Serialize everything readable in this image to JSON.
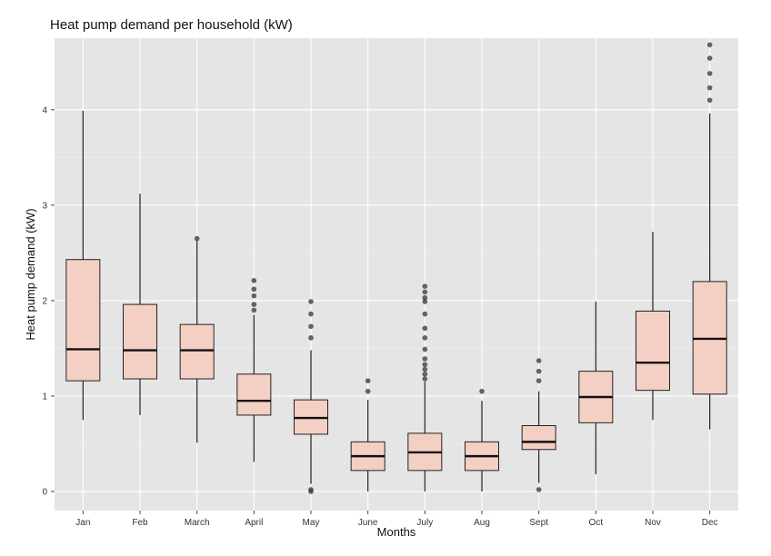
{
  "chart_data": {
    "type": "boxplot",
    "title": "Heat pump demand per household (kW)",
    "xlabel": "Months",
    "ylabel": "Heat pump demand (kW)",
    "ylim": [
      -0.2,
      4.75
    ],
    "yticks": [
      0,
      1,
      2,
      3,
      4
    ],
    "grid": true,
    "colors": {
      "panel": "#e5e5e5",
      "grid_major": "#ffffff",
      "box_fill": "#f4cfc4",
      "box_line": "#222222",
      "median_line": "#111111",
      "outlier": "#333333"
    },
    "categories": [
      "Jan",
      "Feb",
      "March",
      "April",
      "May",
      "June",
      "July",
      "Aug",
      "Sept",
      "Oct",
      "Nov",
      "Dec"
    ],
    "boxes": [
      {
        "category": "Jan",
        "lower_whisker": 0.75,
        "q1": 1.16,
        "median": 1.49,
        "q3": 2.43,
        "upper_whisker": 3.99,
        "outliers": []
      },
      {
        "category": "Feb",
        "lower_whisker": 0.8,
        "q1": 1.18,
        "median": 1.48,
        "q3": 1.96,
        "upper_whisker": 3.12,
        "outliers": []
      },
      {
        "category": "March",
        "lower_whisker": 0.51,
        "q1": 1.18,
        "median": 1.48,
        "q3": 1.75,
        "upper_whisker": 2.63,
        "outliers": [
          2.65
        ]
      },
      {
        "category": "April",
        "lower_whisker": 0.31,
        "q1": 0.8,
        "median": 0.95,
        "q3": 1.23,
        "upper_whisker": 1.85,
        "outliers": [
          1.9,
          1.96,
          2.05,
          2.12,
          2.21
        ]
      },
      {
        "category": "May",
        "lower_whisker": 0.08,
        "q1": 0.6,
        "median": 0.77,
        "q3": 0.96,
        "upper_whisker": 1.48,
        "outliers": [
          0.0,
          0.02,
          1.61,
          1.73,
          1.86,
          1.99
        ]
      },
      {
        "category": "June",
        "lower_whisker": 0.0,
        "q1": 0.22,
        "median": 0.37,
        "q3": 0.52,
        "upper_whisker": 0.96,
        "outliers": [
          1.05,
          1.16
        ]
      },
      {
        "category": "July",
        "lower_whisker": 0.0,
        "q1": 0.22,
        "median": 0.41,
        "q3": 0.61,
        "upper_whisker": 1.15,
        "outliers": [
          1.18,
          1.23,
          1.28,
          1.33,
          1.39,
          1.49,
          1.61,
          1.71,
          1.86,
          1.99,
          2.03,
          2.09,
          2.15
        ]
      },
      {
        "category": "Aug",
        "lower_whisker": 0.0,
        "q1": 0.22,
        "median": 0.37,
        "q3": 0.52,
        "upper_whisker": 0.95,
        "outliers": [
          1.05
        ]
      },
      {
        "category": "Sept",
        "lower_whisker": 0.09,
        "q1": 0.44,
        "median": 0.52,
        "q3": 0.69,
        "upper_whisker": 1.05,
        "outliers": [
          0.02,
          1.16,
          1.26,
          1.37
        ]
      },
      {
        "category": "Oct",
        "lower_whisker": 0.18,
        "q1": 0.72,
        "median": 0.99,
        "q3": 1.26,
        "upper_whisker": 1.99,
        "outliers": []
      },
      {
        "category": "Nov",
        "lower_whisker": 0.75,
        "q1": 1.06,
        "median": 1.35,
        "q3": 1.89,
        "upper_whisker": 2.72,
        "outliers": []
      },
      {
        "category": "Dec",
        "lower_whisker": 0.65,
        "q1": 1.02,
        "median": 1.6,
        "q3": 2.2,
        "upper_whisker": 3.96,
        "outliers": [
          4.1,
          4.23,
          4.38,
          4.54,
          4.68
        ]
      }
    ]
  }
}
